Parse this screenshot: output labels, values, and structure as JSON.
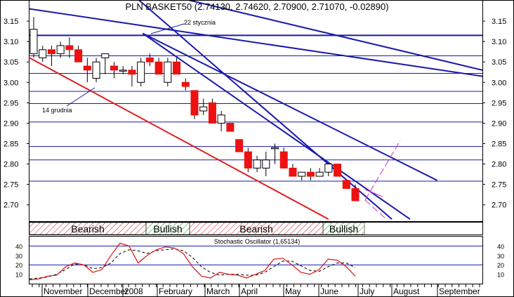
{
  "chart_data": {
    "type": "candlestick",
    "title": "PLN BASKET50 (2.74130, 2.74620, 2.70900, 2.71070, -0.02890)",
    "price_ylim": [
      2.66,
      3.2
    ],
    "price_ticks": [
      3.15,
      3.1,
      3.05,
      3.0,
      2.95,
      2.9,
      2.85,
      2.8,
      2.75,
      2.7
    ],
    "tick_labels": [
      "3.15",
      "3.10",
      "3.05",
      "3.00",
      "2.95",
      "2.90",
      "2.85",
      "2.80",
      "2.75",
      "2.70"
    ],
    "horizontal_levels": [
      3.115,
      3.065,
      3.022,
      2.978,
      2.948,
      2.903,
      2.843,
      2.81,
      2.758
    ],
    "candles": [
      {
        "o": 3.07,
        "h": 3.16,
        "l": 3.06,
        "c": 3.13
      },
      {
        "o": 3.06,
        "h": 3.09,
        "l": 3.05,
        "c": 3.08
      },
      {
        "o": 3.08,
        "h": 3.09,
        "l": 3.04,
        "c": 3.07
      },
      {
        "o": 3.07,
        "h": 3.1,
        "l": 3.06,
        "c": 3.09
      },
      {
        "o": 3.09,
        "h": 3.11,
        "l": 3.06,
        "c": 3.08
      },
      {
        "o": 3.08,
        "h": 3.09,
        "l": 3.05,
        "c": 3.05
      },
      {
        "o": 3.04,
        "h": 3.06,
        "l": 3.0,
        "c": 3.03
      },
      {
        "o": 3.01,
        "h": 3.06,
        "l": 3.0,
        "c": 3.05
      },
      {
        "o": 3.06,
        "h": 3.07,
        "l": 3.02,
        "c": 3.07
      },
      {
        "o": 3.04,
        "h": 3.05,
        "l": 3.01,
        "c": 3.03
      },
      {
        "o": 3.03,
        "h": 3.04,
        "l": 3.02,
        "c": 3.03
      },
      {
        "o": 3.03,
        "h": 3.04,
        "l": 2.99,
        "c": 3.02
      },
      {
        "o": 3.0,
        "h": 3.06,
        "l": 2.99,
        "c": 3.05
      },
      {
        "o": 3.06,
        "h": 3.07,
        "l": 3.04,
        "c": 3.05
      },
      {
        "o": 3.05,
        "h": 3.06,
        "l": 3.02,
        "c": 3.02
      },
      {
        "o": 3.0,
        "h": 3.06,
        "l": 2.99,
        "c": 3.05
      },
      {
        "o": 3.05,
        "h": 3.06,
        "l": 3.02,
        "c": 3.02
      },
      {
        "o": 3.0,
        "h": 3.01,
        "l": 2.98,
        "c": 2.99
      },
      {
        "o": 2.98,
        "h": 2.98,
        "l": 2.91,
        "c": 2.92
      },
      {
        "o": 2.93,
        "h": 2.96,
        "l": 2.92,
        "c": 2.94
      },
      {
        "o": 2.95,
        "h": 2.96,
        "l": 2.9,
        "c": 2.9
      },
      {
        "o": 2.9,
        "h": 2.93,
        "l": 2.88,
        "c": 2.92
      },
      {
        "o": 2.9,
        "h": 2.9,
        "l": 2.88,
        "c": 2.88
      },
      {
        "o": 2.86,
        "h": 2.86,
        "l": 2.83,
        "c": 2.83
      },
      {
        "o": 2.83,
        "h": 2.84,
        "l": 2.78,
        "c": 2.79
      },
      {
        "o": 2.79,
        "h": 2.82,
        "l": 2.78,
        "c": 2.81
      },
      {
        "o": 2.79,
        "h": 2.83,
        "l": 2.77,
        "c": 2.81
      },
      {
        "o": 2.84,
        "h": 2.85,
        "l": 2.8,
        "c": 2.84
      },
      {
        "o": 2.83,
        "h": 2.84,
        "l": 2.79,
        "c": 2.79
      },
      {
        "o": 2.79,
        "h": 2.8,
        "l": 2.77,
        "c": 2.77
      },
      {
        "o": 2.77,
        "h": 2.78,
        "l": 2.76,
        "c": 2.78
      },
      {
        "o": 2.78,
        "h": 2.79,
        "l": 2.76,
        "c": 2.77
      },
      {
        "o": 2.77,
        "h": 2.79,
        "l": 2.77,
        "c": 2.78
      },
      {
        "o": 2.78,
        "h": 2.8,
        "l": 2.77,
        "c": 2.8
      },
      {
        "o": 2.8,
        "h": 2.8,
        "l": 2.77,
        "c": 2.77
      },
      {
        "o": 2.76,
        "h": 2.76,
        "l": 2.74,
        "c": 2.74
      },
      {
        "o": 2.74,
        "h": 2.75,
        "l": 2.71,
        "c": 2.71
      }
    ],
    "trendlines": [
      {
        "color": "#1a1aaa",
        "x1": 0.0,
        "y1": 3.18,
        "x2": 1.0,
        "y2": 3.015
      },
      {
        "color": "#1a1aaa",
        "x1": 0.13,
        "y1": 3.26,
        "x2": 1.0,
        "y2": 3.03
      },
      {
        "color": "#1a1aaa",
        "x1": 0.25,
        "y1": 3.12,
        "x2": 0.84,
        "y2": 2.665
      },
      {
        "color": "#1a1aaa",
        "x1": 0.25,
        "y1": 3.12,
        "x2": 0.9,
        "y2": 2.76
      },
      {
        "color": "#1a1aaa",
        "x1": 0.16,
        "y1": 3.28,
        "x2": 0.8,
        "y2": 2.665
      },
      {
        "color": "#dd2222",
        "x1": 0.0,
        "y1": 3.06,
        "x2": 0.66,
        "y2": 2.665
      }
    ],
    "annotations": [
      {
        "text": "22 stycznia"
      },
      {
        "text": "14 grudnia"
      }
    ],
    "regimes": [
      {
        "label": "Bearish",
        "hatched": true
      },
      {
        "label": "Bullish",
        "hatched": false
      },
      {
        "label": "Bearish",
        "hatched": true
      },
      {
        "label": "Bullish",
        "hatched": false
      }
    ],
    "oscillator": {
      "title": "Stochastic Oscillator (1,65134)",
      "ylim": [
        0,
        50
      ],
      "ticks": [
        "40",
        "30",
        "20",
        "10"
      ],
      "tick_values": [
        40,
        30,
        20,
        10
      ],
      "levels": [
        20,
        40
      ],
      "k": [
        4,
        5,
        8,
        9,
        18,
        22,
        20,
        12,
        15,
        30,
        43,
        40,
        22,
        30,
        36,
        39,
        38,
        32,
        18,
        8,
        6,
        12,
        10,
        9,
        6,
        10,
        14,
        26,
        27,
        20,
        12,
        10,
        15,
        26,
        25,
        18,
        8
      ],
      "d": [
        5,
        6,
        7,
        10,
        15,
        21,
        20,
        16,
        17,
        22,
        32,
        36,
        35,
        32,
        35,
        36,
        37,
        35,
        28,
        18,
        12,
        9,
        10,
        10,
        9,
        9,
        12,
        18,
        24,
        24,
        19,
        14,
        13,
        18,
        22,
        22,
        17
      ]
    },
    "months": [
      "November",
      "December",
      "2008",
      "February",
      "March",
      "April",
      "May",
      "June",
      "July",
      "August",
      "September"
    ]
  }
}
